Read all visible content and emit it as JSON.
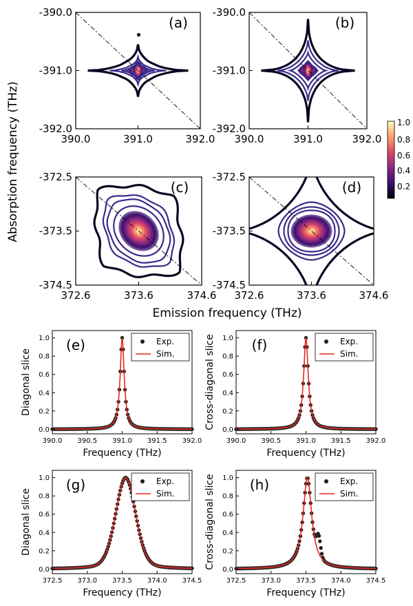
{
  "figure": {
    "top_ylabel": "Absorption frequency (THz)",
    "top_xlabel": "Emission frequency (THz)"
  },
  "colorbar": {
    "ticks": [
      "1.0",
      "0.8",
      "0.6",
      "0.4",
      "0.2"
    ],
    "colors": [
      "#000004",
      "#3b0f70",
      "#8c2981",
      "#de4968",
      "#fe9f6d",
      "#fcfdbf"
    ]
  },
  "chart_data": [
    {
      "type": "heatmap",
      "panel": "(a)",
      "xticks": [
        "390.0",
        "391.0",
        "392.0"
      ],
      "yticks": [
        "-390.0",
        "-391.0",
        "-392.0"
      ],
      "xlim": [
        390.0,
        392.0
      ],
      "ylim": [
        -392.0,
        -390.0
      ],
      "center": [
        391.0,
        -391.0
      ],
      "kind": "star-exp"
    },
    {
      "type": "heatmap",
      "panel": "(b)",
      "xticks": [
        "390.0",
        "391.0",
        "392.0"
      ],
      "yticks": [
        "-390.0",
        "-391.0",
        "-392.0"
      ],
      "xlim": [
        390.0,
        392.0
      ],
      "ylim": [
        -392.0,
        -390.0
      ],
      "center": [
        391.0,
        -391.0
      ],
      "kind": "star-sim"
    },
    {
      "type": "heatmap",
      "panel": "(c)",
      "xticks": [
        "372.6",
        "373.6",
        "374.6"
      ],
      "yticks": [
        "-372.5",
        "-373.5",
        "-374.5"
      ],
      "xlim": [
        372.6,
        374.6
      ],
      "ylim": [
        -374.5,
        -372.5
      ],
      "center": [
        373.6,
        -373.5
      ],
      "kind": "blob-exp"
    },
    {
      "type": "heatmap",
      "panel": "(d)",
      "xticks": [
        "372.6",
        "373.6",
        "374.6"
      ],
      "yticks": [
        "-372.5",
        "-373.5",
        "-374.5"
      ],
      "xlim": [
        372.6,
        374.6
      ],
      "ylim": [
        -374.5,
        -372.5
      ],
      "center": [
        373.6,
        -373.5
      ],
      "kind": "star-sim-broad"
    },
    {
      "type": "line",
      "panel": "(e)",
      "xlabel": "Frequency (THz)",
      "ylabel": "Diagonal slice",
      "xlim": [
        390.0,
        392.0
      ],
      "ylim": [
        -0.05,
        1.08
      ],
      "xticks": [
        "390.0",
        "390.5",
        "391.0",
        "391.5",
        "392.0"
      ],
      "yticks": [
        "0.0",
        "0.2",
        "0.4",
        "0.6",
        "0.8",
        "1.0"
      ],
      "series": [
        {
          "name": "Exp.",
          "style": "points",
          "center": 391.0,
          "width": 0.035
        },
        {
          "name": "Sim.",
          "style": "line",
          "center": 391.0,
          "width": 0.035
        }
      ]
    },
    {
      "type": "line",
      "panel": "(f)",
      "xlabel": "Frequency (THz)",
      "ylabel": "Cross-diagonal slice",
      "xlim": [
        390.0,
        392.0
      ],
      "ylim": [
        -0.05,
        1.08
      ],
      "xticks": [
        "390.0",
        "390.5",
        "391.0",
        "391.5",
        "392.0"
      ],
      "yticks": [
        "0.0",
        "0.2",
        "0.4",
        "0.6",
        "0.8",
        "1.0"
      ],
      "series": [
        {
          "name": "Exp.",
          "style": "points",
          "center": 391.0,
          "width": 0.04
        },
        {
          "name": "Sim.",
          "style": "line",
          "center": 391.0,
          "width": 0.04
        }
      ]
    },
    {
      "type": "line",
      "panel": "(g)",
      "xlabel": "Frequency (THz)",
      "ylabel": "Diagonal slice",
      "xlim": [
        372.5,
        374.5
      ],
      "ylim": [
        -0.05,
        1.08
      ],
      "xticks": [
        "372.5",
        "373.0",
        "373.5",
        "374.0",
        "374.5"
      ],
      "yticks": [
        "0.0",
        "0.2",
        "0.4",
        "0.6",
        "0.8",
        "1.0"
      ],
      "series": [
        {
          "name": "Exp.",
          "style": "points",
          "center": 373.55,
          "width": 0.17
        },
        {
          "name": "Sim.",
          "style": "line",
          "center": 373.55,
          "width": 0.17
        }
      ]
    },
    {
      "type": "line",
      "panel": "(h)",
      "xlabel": "Frequency (THz)",
      "ylabel": "Cross-diagonal slice",
      "xlim": [
        372.5,
        374.5
      ],
      "ylim": [
        -0.05,
        1.08
      ],
      "xticks": [
        "372.5",
        "373.0",
        "373.5",
        "374.0",
        "374.5"
      ],
      "yticks": [
        "0.0",
        "0.2",
        "0.4",
        "0.6",
        "0.8",
        "1.0"
      ],
      "series": [
        {
          "name": "Exp.",
          "style": "points",
          "center": 373.52,
          "width": 0.075,
          "shoulder": 373.68
        },
        {
          "name": "Sim.",
          "style": "line",
          "center": 373.52,
          "width": 0.075
        }
      ]
    }
  ]
}
